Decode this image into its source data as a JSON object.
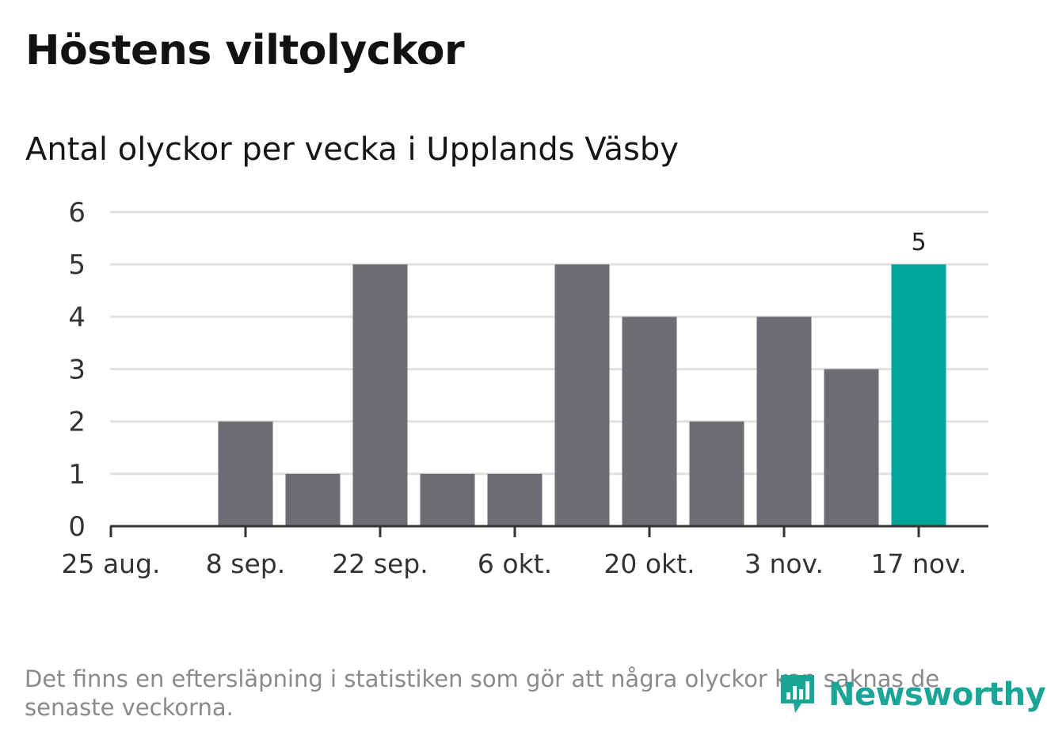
{
  "title": "Höstens viltolyckor",
  "subtitle": "Antal olyckor per vecka i Upplands Väsby",
  "footnote": "Det finns en eftersläpning i statistiken som gör att några olyckor kan saknas de senaste veckorna.",
  "logo": {
    "text": "Newsworthy",
    "icon": "newsworthy-logo-icon"
  },
  "colors": {
    "bar": "#6e6d73",
    "highlight": "#00a59a",
    "grid": "#e0e0e0",
    "axis": "#333333",
    "logo": "#1aa597"
  },
  "chart_data": {
    "type": "bar",
    "x": [
      "25 aug.",
      "1 sep.",
      "8 sep.",
      "15 sep.",
      "22 sep.",
      "29 sep.",
      "6 okt.",
      "13 okt.",
      "20 okt.",
      "27 okt.",
      "3 nov.",
      "10 nov.",
      "17 nov."
    ],
    "values": [
      0,
      0,
      2,
      1,
      5,
      1,
      1,
      5,
      4,
      2,
      4,
      3,
      5
    ],
    "highlight_index": 12,
    "highlight_label": "5",
    "tick_labels": [
      "25 aug.",
      "8 sep.",
      "22 sep.",
      "6 okt.",
      "20 okt.",
      "3 nov.",
      "17 nov."
    ],
    "tick_indices": [
      0,
      2,
      4,
      6,
      8,
      10,
      12
    ],
    "yticks": [
      0,
      1,
      2,
      3,
      4,
      5,
      6
    ],
    "ylim": [
      0,
      6
    ],
    "grid": true,
    "legend": "none"
  }
}
